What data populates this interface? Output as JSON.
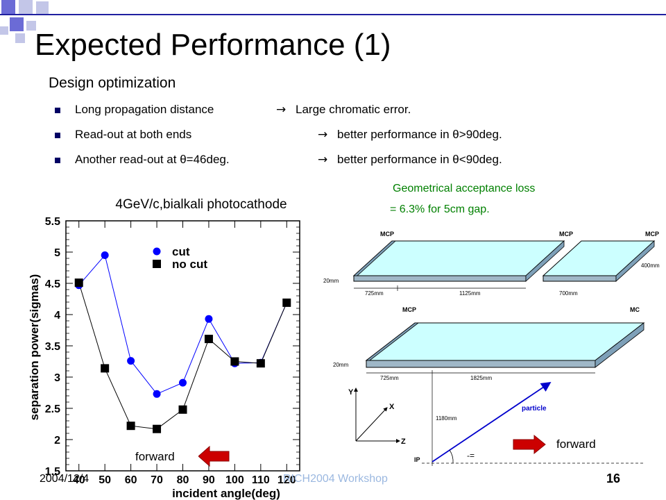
{
  "slide": {
    "title": "Expected Performance (1)",
    "subtitle": "Design optimization",
    "bullets": [
      {
        "left": "Long propagation distance",
        "arrow": "→",
        "right": "Large chromatic error."
      },
      {
        "left": "Read-out at both ends",
        "arrow": "→",
        "right": "better performance in θ>90deg."
      },
      {
        "left": "Another read-out at θ=46deg.",
        "arrow": "→",
        "right": "better performance in θ<90deg."
      }
    ],
    "acceptance_line1": "Geometrical acceptance loss",
    "acceptance_line2": "= 6.3%  for 5cm gap.",
    "forward_left": "forward",
    "forward_right": "forward",
    "footer_date": "2004/12/4",
    "footer_center": "RICH2004 Workshop",
    "page_number": "16"
  },
  "colors": {
    "accent_blue": "#0000cc",
    "green_text": "#008000",
    "arrow_red": "#cc0000",
    "bar_fill": "#ccffff"
  },
  "diagram": {
    "mcp": "MCP",
    "mcp_cut": "MC",
    "d20mm": "20mm",
    "d725": "725mm",
    "d1125": "1125mm",
    "d700": "700mm",
    "d400": "400mm",
    "d1825": "1825mm",
    "d1180": "1180mm",
    "axis_y": "Y",
    "axis_x": "X",
    "axis_z": "Z",
    "ip": "IP",
    "particle": "particle"
  },
  "chart_data": {
    "type": "scatter",
    "title": "4GeV/c,bialkali photocathode",
    "xlabel": "incident angle(deg)",
    "ylabel": "separation power(sigmas)",
    "xlim": [
      35,
      125
    ],
    "ylim": [
      1.5,
      5.5
    ],
    "x_ticks": [
      40,
      50,
      60,
      70,
      80,
      90,
      100,
      110,
      120
    ],
    "y_ticks": [
      1.5,
      2,
      2.5,
      3,
      3.5,
      4,
      4.5,
      5,
      5.5
    ],
    "x": [
      40,
      50,
      60,
      70,
      80,
      90,
      100,
      110,
      120
    ],
    "series": [
      {
        "name": "cut",
        "marker": "circle",
        "color": "#0000ff",
        "values": [
          4.47,
          4.95,
          3.26,
          2.73,
          2.91,
          3.93,
          3.22,
          3.23,
          4.19
        ]
      },
      {
        "name": "no cut",
        "marker": "square",
        "color": "#000000",
        "values": [
          4.51,
          3.14,
          2.22,
          2.17,
          2.48,
          3.61,
          3.25,
          3.22,
          4.19
        ]
      }
    ],
    "legend_position": "top-right"
  }
}
